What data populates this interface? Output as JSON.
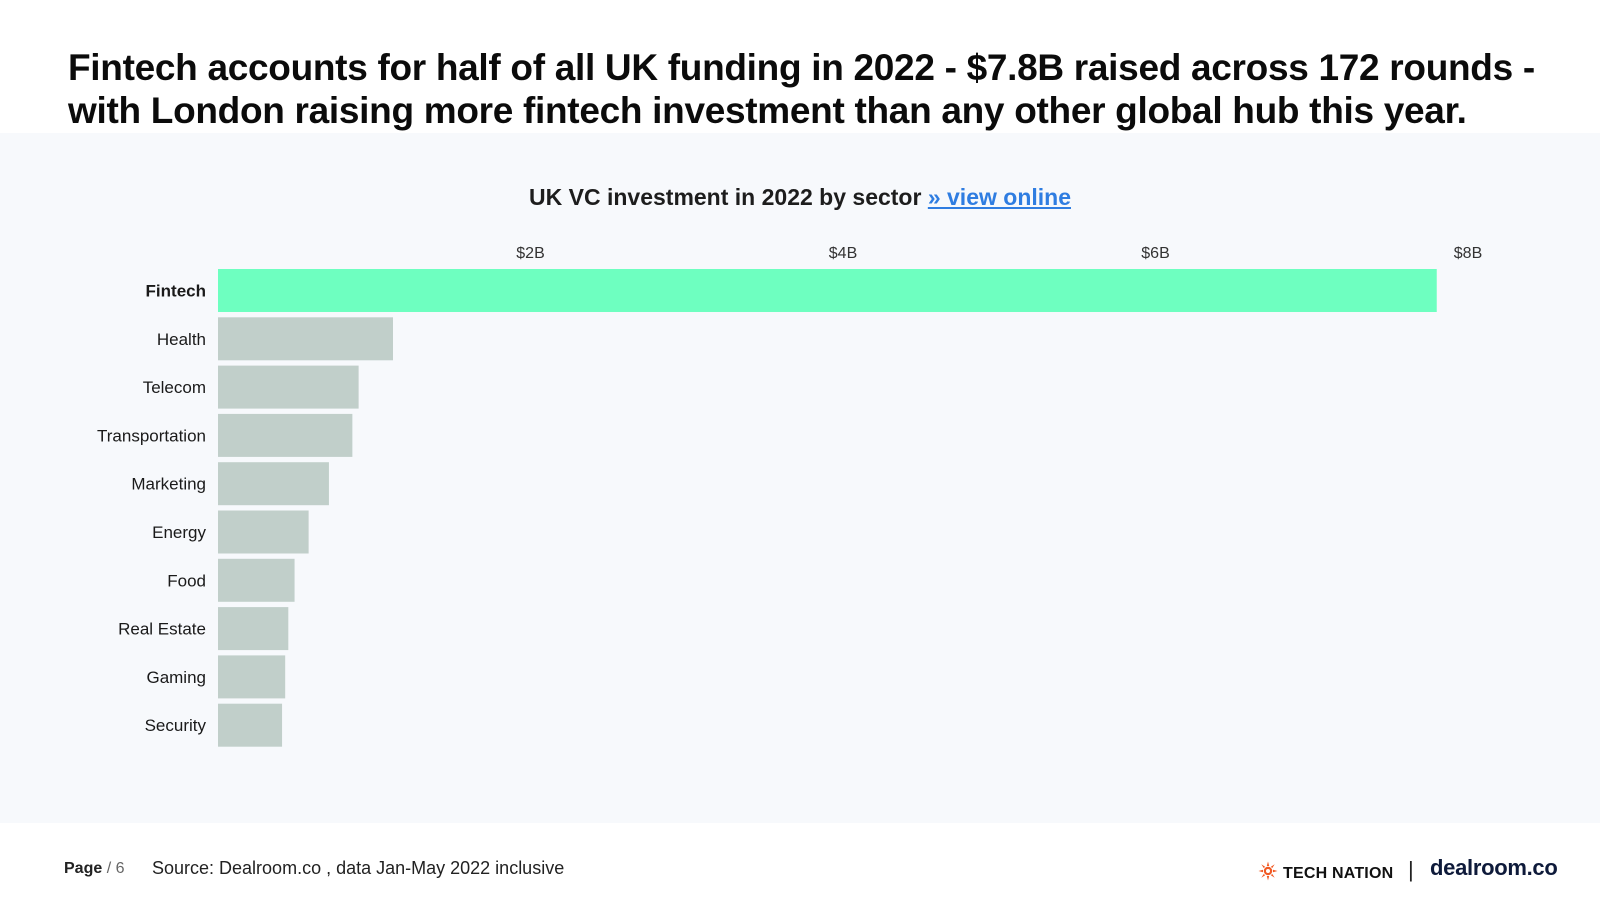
{
  "headline": "Fintech accounts for half of all UK funding in 2022 - $7.8B raised across 172 rounds - with London raising more fintech investment than any other global hub this year.",
  "chart_title": {
    "text": "UK VC investment in 2022 by sector",
    "link_text": "» view online"
  },
  "chart_data": {
    "type": "bar",
    "orientation": "horizontal",
    "title": "UK VC investment in 2022 by sector",
    "categories": [
      "Fintech",
      "Health",
      "Telecom",
      "Transportation",
      "Marketing",
      "Energy",
      "Food",
      "Real Estate",
      "Gaming",
      "Security"
    ],
    "values": [
      7.8,
      1.12,
      0.9,
      0.86,
      0.71,
      0.58,
      0.49,
      0.45,
      0.43,
      0.41
    ],
    "unit": "$B",
    "xlim": [
      0,
      8
    ],
    "ticks": [
      {
        "value": 2,
        "label": "$2B"
      },
      {
        "value": 4,
        "label": "$4B"
      },
      {
        "value": 6,
        "label": "$6B"
      },
      {
        "value": 8,
        "label": "$8B"
      }
    ],
    "highlight_category": "Fintech",
    "colors": {
      "highlight": "#6effc0",
      "default": "#c1cfca"
    },
    "grid": false,
    "legend": "none"
  },
  "footer": {
    "page_label": "Page",
    "page_number": "/ 6",
    "source": "Source: Dealroom.co , data Jan-May 2022 inclusive"
  },
  "brands": {
    "tech_nation": "TECH NATION",
    "tech_nation_icon": "sun-burst-icon",
    "separator": "|",
    "dealroom": "dealroom.co"
  }
}
